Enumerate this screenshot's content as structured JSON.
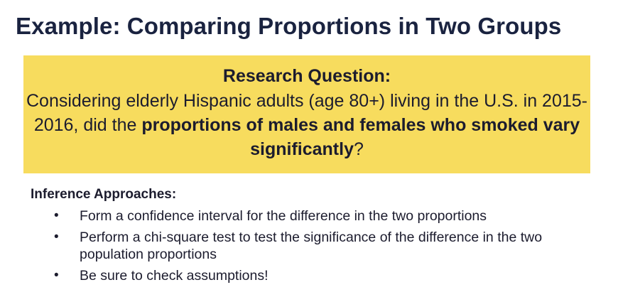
{
  "slide": {
    "title": "Example: Comparing Proportions in Two Groups",
    "question": {
      "heading": "Research Question:",
      "text_part1": "Considering elderly Hispanic adults (age 80+) living in the U.S. in 2015-2016, did the ",
      "text_bold": "proportions of males and females who smoked vary significantly",
      "text_part2": "?"
    },
    "approaches": {
      "heading": "Inference Approaches:",
      "bullet_char": "•",
      "items": [
        "Form a confidence interval for the difference in the two proportions",
        "Perform a chi-square test to test the significance of the difference in the two population proportions",
        "Be sure to check assumptions!"
      ]
    },
    "colors": {
      "title": "#1a2340",
      "highlight_box": "#f7dc5e",
      "text": "#1c1c2e"
    }
  }
}
